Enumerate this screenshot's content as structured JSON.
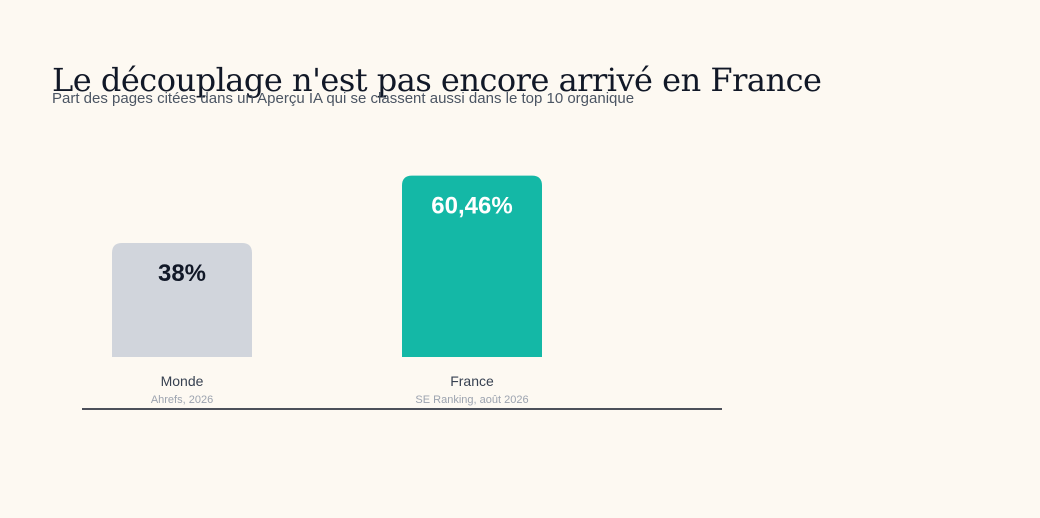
{
  "header": {
    "title": "Le découplage n'est pas encore arrivé en France",
    "subtitle": "Part des pages citées dans un Aperçu IA qui se classent aussi dans le top 10 organique"
  },
  "chart_data": {
    "type": "bar",
    "categories": [
      "Monde",
      "France"
    ],
    "sources": [
      "Ahrefs, 2026",
      "SE Ranking, août 2026"
    ],
    "values": [
      38,
      60.46
    ],
    "value_labels": [
      "38%",
      "60,46%"
    ],
    "colors": [
      "#d1d5dc",
      "#14b8a6"
    ],
    "label_colors": [
      "#111827",
      "#ffffff"
    ],
    "title": "Le découplage n'est pas encore arrivé en France",
    "subtitle": "Part des pages citées dans un Aperçu IA qui se classent aussi dans le top 10 organique",
    "xlabel": "",
    "ylabel": "",
    "grid": false
  }
}
